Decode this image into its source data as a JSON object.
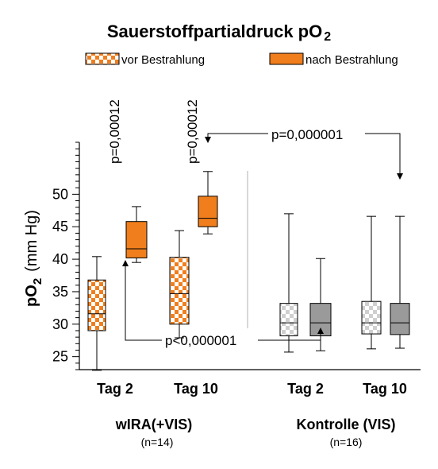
{
  "colors": {
    "orange": "#f07e1c",
    "gray": "#9a9a9a",
    "light_gray": "#cfcfcf",
    "white": "#ffffff",
    "separator": "#b0b0b0"
  },
  "chart_data": {
    "type": "boxplot",
    "title": "Sauerstoffpartialdruck pO",
    "title_subscript": "2",
    "ylabel": "pO",
    "ylabel_subscript": "2",
    "yunit": "(mm Hg)",
    "ylim": [
      23,
      58
    ],
    "yticks": [
      25,
      30,
      35,
      40,
      45,
      50
    ],
    "legend": [
      {
        "label": "vor Bestrahlung",
        "pattern": "checker",
        "color": "#f07e1c"
      },
      {
        "label": "nach  Bestrahlung",
        "pattern": "solid",
        "color": "#f07e1c"
      }
    ],
    "groups": [
      {
        "name": "wIRA(+VIS)",
        "n_label": "(n=14)"
      },
      {
        "name": "Kontrolle (VIS)",
        "n_label": "(n=16)"
      }
    ],
    "boxes": [
      {
        "group": 0,
        "category": "Tag 2",
        "series": "vor Bestrahlung",
        "pattern": "checker",
        "color": "#f07e1c",
        "min": 22.9,
        "q1": 29.0,
        "median": 31.6,
        "q3": 36.8,
        "max": 40.4
      },
      {
        "group": 0,
        "category": "Tag 2",
        "series": "nach Bestrahlung",
        "pattern": "solid",
        "color": "#f07e1c",
        "min": 39.5,
        "q1": 40.2,
        "median": 41.6,
        "q3": 45.8,
        "max": 48.1
      },
      {
        "group": 0,
        "category": "Tag 10",
        "series": "vor Bestrahlung",
        "pattern": "checker",
        "color": "#f07e1c",
        "min": 27.9,
        "q1": 30.0,
        "median": 34.7,
        "q3": 40.3,
        "max": 44.4
      },
      {
        "group": 0,
        "category": "Tag 10",
        "series": "nach Bestrahlung",
        "pattern": "solid",
        "color": "#f07e1c",
        "min": 43.9,
        "q1": 45.0,
        "median": 46.3,
        "q3": 49.7,
        "max": 53.5
      },
      {
        "group": 1,
        "category": "Tag 2",
        "series": "vor Bestrahlung",
        "pattern": "checker",
        "color": "#9a9a9a",
        "min": 25.7,
        "q1": 28.2,
        "median": 30.2,
        "q3": 33.2,
        "max": 47.0
      },
      {
        "group": 1,
        "category": "Tag 2",
        "series": "nach Bestrahlung",
        "pattern": "solid",
        "color": "#9a9a9a",
        "min": 25.9,
        "q1": 28.2,
        "median": 30.2,
        "q3": 33.2,
        "max": 40.1
      },
      {
        "group": 1,
        "category": "Tag 10",
        "series": "vor Bestrahlung",
        "pattern": "checker",
        "color": "#9a9a9a",
        "min": 26.2,
        "q1": 28.5,
        "median": 30.2,
        "q3": 33.5,
        "max": 46.6
      },
      {
        "group": 1,
        "category": "Tag 10",
        "series": "nach Bestrahlung",
        "pattern": "solid",
        "color": "#9a9a9a",
        "min": 26.3,
        "q1": 28.4,
        "median": 30.2,
        "q3": 33.2,
        "max": 46.6
      }
    ],
    "category_labels": [
      "Tag 2",
      "Tag 10",
      "Tag 2",
      "Tag 10"
    ],
    "annotations": [
      {
        "text": "p=0,00012",
        "orientation": "vertical",
        "relates": "wIRA Tag 2 vor vs nach"
      },
      {
        "text": "p=0,00012",
        "orientation": "vertical",
        "relates": "wIRA Tag 10 vor vs nach"
      },
      {
        "text": "p=0,000001",
        "relates": "wIRA Tag 10 nach vs Kontrolle Tag 10 nach"
      },
      {
        "text": "p<0,000001",
        "relates": "wIRA Tag 2 nach vs Kontrolle Tag 2 nach"
      }
    ]
  }
}
